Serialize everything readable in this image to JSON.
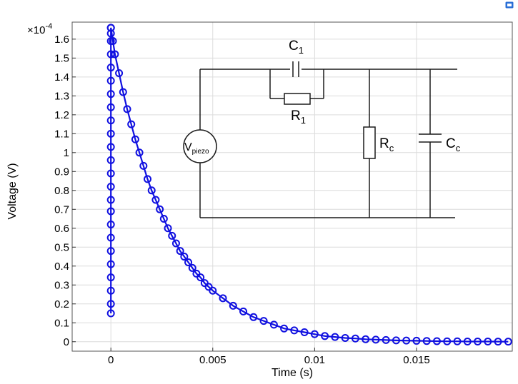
{
  "chart_data": {
    "type": "line",
    "xlabel": "Time (s)",
    "ylabel": "Voltage (V)",
    "y_multiplier": "×10",
    "y_exponent": "-4",
    "xlim": [
      -0.0019,
      0.0197
    ],
    "ylim": [
      -0.05,
      1.69
    ],
    "x_ticks": [
      0,
      0.005,
      0.01,
      0.015
    ],
    "x_tick_labels": [
      "0",
      "0.005",
      "0.01",
      "0.015"
    ],
    "y_ticks": [
      0,
      0.1,
      0.2,
      0.3,
      0.4,
      0.5,
      0.6,
      0.7,
      0.8,
      0.9,
      1,
      1.1,
      1.2,
      1.3,
      1.4,
      1.5,
      1.6
    ],
    "y_tick_labels": [
      "0",
      "0.1",
      "0.2",
      "0.3",
      "0.4",
      "0.5",
      "0.6",
      "0.7",
      "0.8",
      "0.9",
      "1",
      "1.1",
      "1.2",
      "1.3",
      "1.4",
      "1.5",
      "1.6"
    ],
    "grid": true,
    "line_color": "#1010e0",
    "series": [
      {
        "marker": "circle",
        "rise": {
          "x": [
            0,
            0,
            0,
            0,
            0,
            0,
            0,
            0,
            0,
            0,
            0,
            0,
            0,
            0,
            0,
            0,
            0,
            0,
            0,
            0,
            0,
            0,
            0,
            0
          ],
          "y": [
            0.15,
            0.2,
            0.27,
            0.34,
            0.41,
            0.48,
            0.55,
            0.62,
            0.69,
            0.75,
            0.82,
            0.89,
            0.96,
            1.03,
            1.1,
            1.17,
            1.24,
            1.31,
            1.38,
            1.45,
            1.52,
            1.59,
            1.63,
            1.66
          ]
        },
        "decay": {
          "x": [
            0.0,
            0.0001,
            0.0002,
            0.0004,
            0.0006,
            0.0008,
            0.001,
            0.0012,
            0.0014,
            0.0016,
            0.0018,
            0.002,
            0.0022,
            0.0024,
            0.0026,
            0.0028,
            0.003,
            0.0032,
            0.0034,
            0.0036,
            0.0038,
            0.004,
            0.0042,
            0.0044,
            0.0046,
            0.0048,
            0.005,
            0.0055,
            0.006,
            0.0065,
            0.007,
            0.0075,
            0.008,
            0.0085,
            0.009,
            0.0095,
            0.01,
            0.0105,
            0.011,
            0.0115,
            0.012,
            0.0125,
            0.013,
            0.0135,
            0.014,
            0.0145,
            0.015,
            0.0155,
            0.016,
            0.0165,
            0.017,
            0.0175,
            0.018,
            0.0185,
            0.019,
            0.0195
          ],
          "y": [
            1.66,
            1.59,
            1.52,
            1.42,
            1.32,
            1.23,
            1.15,
            1.07,
            1.0,
            0.93,
            0.86,
            0.8,
            0.75,
            0.7,
            0.65,
            0.6,
            0.56,
            0.52,
            0.48,
            0.45,
            0.42,
            0.39,
            0.36,
            0.34,
            0.31,
            0.29,
            0.27,
            0.23,
            0.19,
            0.16,
            0.13,
            0.11,
            0.09,
            0.07,
            0.06,
            0.05,
            0.04,
            0.03,
            0.025,
            0.02,
            0.017,
            0.013,
            0.011,
            0.009,
            0.007,
            0.006,
            0.005,
            0.004,
            0.003,
            0.002,
            0.002,
            0.001,
            0.001,
            0.001,
            0.0005,
            0.0003
          ]
        }
      }
    ]
  },
  "circuit": {
    "source_label": "V",
    "source_sub": "piezo",
    "c1_label": "C",
    "c1_sub": "1",
    "r1_label": "R",
    "r1_sub": "1",
    "rc_label": "R",
    "rc_sub": "c",
    "cc_label": "C",
    "cc_sub": "c"
  },
  "corner_icon": "export-icon"
}
